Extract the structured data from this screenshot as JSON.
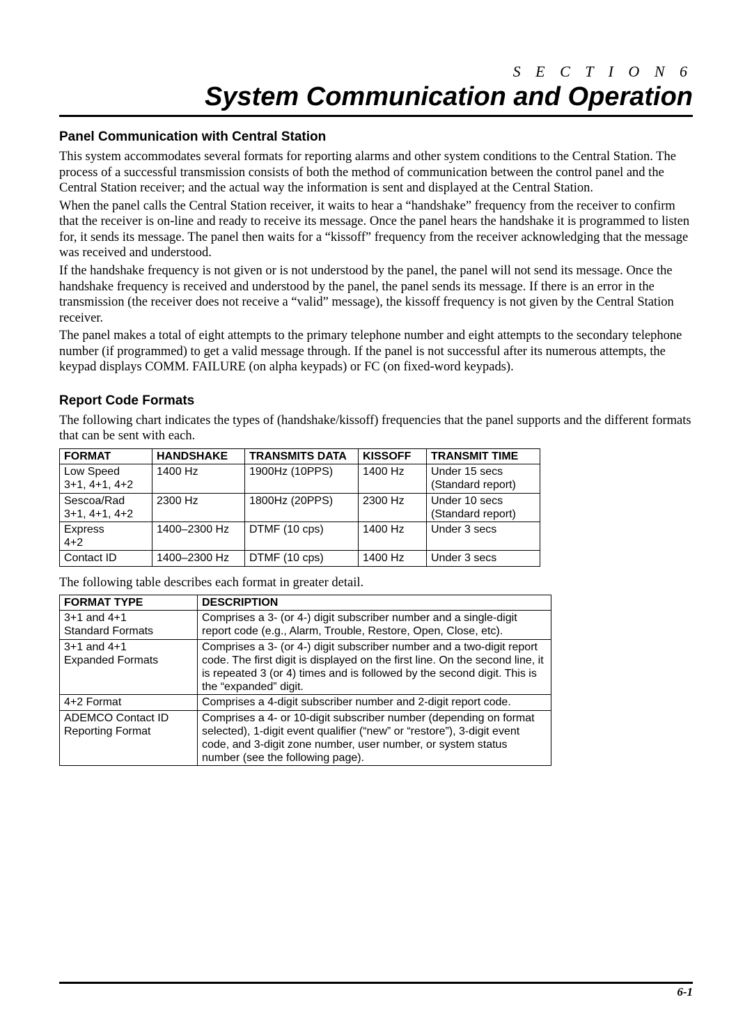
{
  "section_label": "S E C T I O N   6",
  "main_title": "System Communication and Operation",
  "sub1": "Panel Communication with Central Station",
  "p1": "This system accommodates several formats for reporting alarms and other system conditions to the Central Station. The process of a successful transmission consists of both the method of communication between the control panel and the Central Station receiver; and the actual way the information is sent and displayed at the Central Station.",
  "p2": "When the panel calls the Central Station receiver, it waits to hear a “handshake” frequency from the receiver to confirm that the receiver is on-line and ready to receive its message. Once the panel hears the handshake it is programmed to listen for, it sends its message. The panel then waits for a “kissoff” frequency from the receiver acknowledging that the message was received and understood.",
  "p3": "If the handshake frequency is not given or is not understood by the panel, the panel will not send its message. Once the handshake frequency is received and understood by the panel, the panel sends its message. If there is an error in the transmission (the receiver does not receive a “valid” message), the kissoff frequency is not given by the Central Station receiver.",
  "p4": "The panel makes a total of eight attempts to the primary telephone number and eight attempts to the secondary telephone number (if programmed) to get a valid message through. If the panel is not successful after its numerous attempts, the keypad displays COMM. FAILURE  (on alpha keypads) or FC (on fixed-word keypads).",
  "sub2": "Report Code Formats",
  "p5": "The following chart indicates the types of (handshake/kissoff) frequencies that the panel supports and the different formats that can be sent with each.",
  "table1": {
    "headers": [
      "FORMAT",
      "HANDSHAKE",
      "TRANSMITS DATA",
      "KISSOFF",
      "TRANSMIT TIME"
    ],
    "rows": [
      [
        "Low Speed\n3+1, 4+1, 4+2",
        "1400 Hz",
        "1900Hz (10PPS)",
        "1400 Hz",
        "Under 15 secs\n(Standard report)"
      ],
      [
        "Sescoa/Rad\n3+1, 4+1, 4+2",
        "2300 Hz",
        "1800Hz (20PPS)",
        "2300 Hz",
        "Under 10 secs\n(Standard report)"
      ],
      [
        "Express\n4+2",
        "1400–2300 Hz",
        "DTMF (10 cps)",
        "1400 Hz",
        "Under 3 secs"
      ],
      [
        "Contact ID",
        "1400–2300 Hz",
        "DTMF (10 cps)",
        "1400 Hz",
        "Under 3 secs"
      ]
    ]
  },
  "p6": "The following table describes each format in greater detail.",
  "table2": {
    "headers": [
      "FORMAT TYPE",
      "DESCRIPTION"
    ],
    "rows": [
      [
        "3+1 and 4+1\nStandard Formats",
        "Comprises a 3- (or 4-) digit subscriber number and a single-digit report code (e.g., Alarm, Trouble, Restore, Open, Close, etc)."
      ],
      [
        "3+1 and 4+1\nExpanded Formats",
        "Comprises a 3- (or 4-) digit subscriber number and a two-digit report code. The first digit is displayed on the first line. On the second line, it is repeated 3 (or 4) times and is followed by the second digit. This is the “expanded” digit."
      ],
      [
        "4+2 Format",
        "Comprises a 4-digit subscriber number and 2-digit report code."
      ],
      [
        "ADEMCO Contact ID Reporting Format",
        "Comprises a 4- or 10-digit subscriber number (depending on format selected), 1-digit event qualifier (“new” or “restore”), 3-digit event code, and 3-digit zone number, user number, or system status number (see the following page)."
      ]
    ]
  },
  "page_number": "6-1",
  "colors": {
    "text": "#000000",
    "background": "#ffffff",
    "rule": "#000000"
  },
  "fonts": {
    "serif": "Times New Roman",
    "sans": "Arial"
  }
}
